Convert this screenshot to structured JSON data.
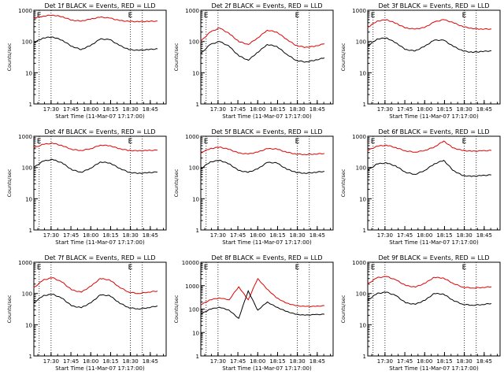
{
  "panel_common": {
    "ylabel": "Counts/sec",
    "xlabel": "Start Time (11-Mar-07 17:17:00)",
    "x_ticks": [
      "17:30",
      "17:45",
      "18:00",
      "18:15",
      "18:30",
      "18:45"
    ],
    "marker_label": "E"
  },
  "colors": {
    "events": "#000000",
    "lld": "#e00000",
    "axis": "#000000"
  },
  "chart_data": [
    {
      "type": "line",
      "title": "Det 1f BLACK = Events, RED = LLD",
      "yscale": "log",
      "y_ticks": [
        "1000",
        "100",
        "10",
        "1"
      ],
      "ylim": [
        1,
        1000
      ],
      "x": [
        17.28,
        17.4,
        17.52,
        17.64,
        17.76,
        17.88,
        18.0,
        18.12,
        18.24,
        18.36,
        18.48,
        18.6,
        18.72,
        18.84
      ],
      "series": [
        {
          "name": "LLD",
          "values": [
            550,
            650,
            700,
            620,
            480,
            450,
            520,
            600,
            560,
            470,
            440,
            430,
            440,
            450
          ]
        },
        {
          "name": "Events",
          "values": [
            90,
            130,
            140,
            110,
            70,
            55,
            75,
            120,
            115,
            75,
            55,
            52,
            55,
            58
          ]
        }
      ]
    },
    {
      "type": "line",
      "title": "Det 2f BLACK = Events, RED = LLD",
      "yscale": "log",
      "y_ticks": [
        "1000",
        "100",
        "10",
        "1"
      ],
      "ylim": [
        1,
        1000
      ],
      "x": [
        17.28,
        17.4,
        17.52,
        17.64,
        17.76,
        17.88,
        18.0,
        18.12,
        18.24,
        18.36,
        18.48,
        18.6,
        18.72,
        18.84
      ],
      "series": [
        {
          "name": "LLD",
          "values": [
            100,
            200,
            270,
            180,
            100,
            80,
            130,
            230,
            200,
            120,
            75,
            65,
            70,
            85
          ]
        },
        {
          "name": "Events",
          "values": [
            40,
            80,
            100,
            70,
            35,
            25,
            45,
            80,
            70,
            40,
            25,
            22,
            25,
            30
          ]
        }
      ]
    },
    {
      "type": "line",
      "title": "Det 3f BLACK = Events, RED = LLD",
      "yscale": "log",
      "y_ticks": [
        "1000",
        "100",
        "10",
        "1"
      ],
      "ylim": [
        1,
        1000
      ],
      "x": [
        17.28,
        17.4,
        17.52,
        17.64,
        17.76,
        17.88,
        18.0,
        18.12,
        18.24,
        18.36,
        18.48,
        18.6,
        18.72,
        18.84
      ],
      "series": [
        {
          "name": "LLD",
          "values": [
            280,
            450,
            500,
            380,
            270,
            250,
            280,
            420,
            500,
            400,
            300,
            260,
            250,
            250
          ]
        },
        {
          "name": "Events",
          "values": [
            70,
            120,
            130,
            90,
            55,
            50,
            70,
            110,
            110,
            70,
            50,
            45,
            48,
            50
          ]
        }
      ]
    },
    {
      "type": "line",
      "title": "Det 4f BLACK = Events, RED = LLD",
      "yscale": "log",
      "y_ticks": [
        "1000",
        "100",
        "10",
        "1"
      ],
      "ylim": [
        1,
        1000
      ],
      "x": [
        17.28,
        17.4,
        17.52,
        17.64,
        17.76,
        17.88,
        18.0,
        18.12,
        18.24,
        18.36,
        18.48,
        18.6,
        18.72,
        18.84
      ],
      "series": [
        {
          "name": "LLD",
          "values": [
            420,
            550,
            600,
            500,
            380,
            350,
            400,
            520,
            500,
            400,
            350,
            340,
            350,
            360
          ]
        },
        {
          "name": "Events",
          "values": [
            100,
            160,
            180,
            140,
            85,
            70,
            95,
            150,
            140,
            95,
            70,
            65,
            68,
            72
          ]
        }
      ]
    },
    {
      "type": "line",
      "title": "Det 5f BLACK = Events, RED = LLD",
      "yscale": "log",
      "y_ticks": [
        "1000",
        "100",
        "10",
        "1"
      ],
      "ylim": [
        1,
        1000
      ],
      "x": [
        17.28,
        17.4,
        17.52,
        17.64,
        17.76,
        17.88,
        18.0,
        18.12,
        18.24,
        18.36,
        18.48,
        18.6,
        18.72,
        18.84
      ],
      "series": [
        {
          "name": "LLD",
          "values": [
            300,
            400,
            450,
            380,
            290,
            270,
            310,
            400,
            390,
            310,
            270,
            260,
            270,
            280
          ]
        },
        {
          "name": "Events",
          "values": [
            90,
            150,
            170,
            130,
            80,
            70,
            90,
            145,
            140,
            90,
            70,
            65,
            70,
            75
          ]
        }
      ]
    },
    {
      "type": "line",
      "title": "Det 6f BLACK = Events, RED = LLD",
      "yscale": "log",
      "y_ticks": [
        "1000",
        "100",
        "10",
        "1"
      ],
      "ylim": [
        1,
        1000
      ],
      "x": [
        17.28,
        17.4,
        17.52,
        17.64,
        17.76,
        17.88,
        18.0,
        18.12,
        18.24,
        18.36,
        18.48,
        18.6,
        18.72,
        18.84
      ],
      "series": [
        {
          "name": "LLD",
          "values": [
            350,
            480,
            520,
            430,
            340,
            310,
            350,
            450,
            700,
            420,
            350,
            330,
            340,
            350
          ]
        },
        {
          "name": "Events",
          "values": [
            80,
            130,
            140,
            110,
            70,
            60,
            80,
            130,
            170,
            80,
            55,
            52,
            55,
            58
          ]
        }
      ]
    },
    {
      "type": "line",
      "title": "Det 7f BLACK = Events, RED = LLD",
      "yscale": "log",
      "y_ticks": [
        "1000",
        "100",
        "10",
        "1"
      ],
      "ylim": [
        1,
        1000
      ],
      "x": [
        17.28,
        17.4,
        17.52,
        17.64,
        17.76,
        17.88,
        18.0,
        18.12,
        18.24,
        18.36,
        18.48,
        18.6,
        18.72,
        18.84
      ],
      "series": [
        {
          "name": "LLD",
          "values": [
            150,
            270,
            320,
            230,
            130,
            110,
            170,
            300,
            270,
            160,
            110,
            100,
            110,
            120
          ]
        },
        {
          "name": "Events",
          "values": [
            50,
            85,
            95,
            70,
            40,
            35,
            50,
            90,
            85,
            50,
            35,
            32,
            35,
            40
          ]
        }
      ]
    },
    {
      "type": "line",
      "title": "Det 8f BLACK = Events, RED = LLD",
      "yscale": "log",
      "y_ticks": [
        "10000",
        "1000",
        "100",
        "10",
        "1"
      ],
      "ylim": [
        1,
        10000
      ],
      "x": [
        17.28,
        17.4,
        17.52,
        17.64,
        17.76,
        17.88,
        18.0,
        18.12,
        18.24,
        18.36,
        18.48,
        18.6,
        18.72,
        18.84
      ],
      "series": [
        {
          "name": "LLD",
          "values": [
            150,
            250,
            300,
            250,
            900,
            250,
            2000,
            700,
            300,
            180,
            140,
            130,
            130,
            140
          ]
        },
        {
          "name": "Events",
          "values": [
            60,
            100,
            120,
            90,
            40,
            600,
            90,
            200,
            120,
            80,
            60,
            55,
            58,
            60
          ]
        }
      ]
    },
    {
      "type": "line",
      "title": "Det 9f BLACK = Events, RED = LLD",
      "yscale": "log",
      "y_ticks": [
        "1000",
        "100",
        "10",
        "1"
      ],
      "ylim": [
        1,
        1000
      ],
      "x": [
        17.28,
        17.4,
        17.52,
        17.64,
        17.76,
        17.88,
        18.0,
        18.12,
        18.24,
        18.36,
        18.48,
        18.6,
        18.72,
        18.84
      ],
      "series": [
        {
          "name": "LLD",
          "values": [
            200,
            320,
            350,
            270,
            180,
            160,
            210,
            330,
            310,
            210,
            160,
            150,
            155,
            165
          ]
        },
        {
          "name": "Events",
          "values": [
            60,
            100,
            110,
            85,
            50,
            45,
            60,
            100,
            95,
            60,
            45,
            42,
            44,
            48
          ]
        }
      ]
    }
  ]
}
